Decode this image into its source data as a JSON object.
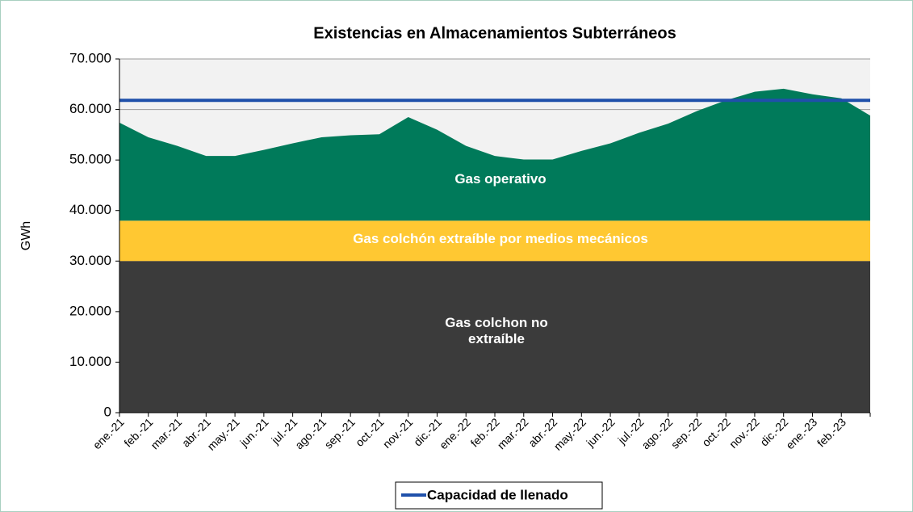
{
  "chart_data": {
    "type": "area",
    "title": "Existencias en Almacenamientos Subterráneos",
    "y_label": "GWh",
    "categories": [
      "ene.-21",
      "feb.-21",
      "mar.-21",
      "abr.-21",
      "may.-21",
      "jun.-21",
      "jul.-21",
      "ago.-21",
      "sep.-21",
      "oct.-21",
      "nov.-21",
      "dic.-21",
      "ene.-22",
      "feb.-22",
      "mar.-22",
      "abr.-22",
      "may.-22",
      "jun.-22",
      "jul.-22",
      "ago.-22",
      "sep.-22",
      "oct.-22",
      "nov.-22",
      "dic.-22",
      "ene.-23",
      "feb.-23",
      null
    ],
    "series": [
      {
        "name": "Gas colchon no extraíble",
        "color": "#3b3b3b",
        "values": [
          30000,
          30000,
          30000,
          30000,
          30000,
          30000,
          30000,
          30000,
          30000,
          30000,
          30000,
          30000,
          30000,
          30000,
          30000,
          30000,
          30000,
          30000,
          30000,
          30000,
          30000,
          30000,
          30000,
          30000,
          30000,
          30000,
          30000
        ]
      },
      {
        "name": "Gas colchón extraíble por medios mecánicos",
        "color": "#ffc832",
        "values": [
          8000,
          8000,
          8000,
          8000,
          8000,
          8000,
          8000,
          8000,
          8000,
          8000,
          8000,
          8000,
          8000,
          8000,
          8000,
          8000,
          8000,
          8000,
          8000,
          8000,
          8000,
          8000,
          8000,
          8000,
          8000,
          8000,
          8000
        ]
      },
      {
        "name": "Gas operativo",
        "color": "#007a5a",
        "values": [
          19400,
          16500,
          14800,
          12800,
          12800,
          14000,
          15300,
          16500,
          16900,
          17100,
          20500,
          18000,
          14800,
          12800,
          12100,
          12100,
          13800,
          15300,
          17400,
          19200,
          21700,
          23800,
          25500,
          26100,
          25000,
          24200,
          20800
        ]
      },
      {
        "name": "Capacidad de llenado",
        "type": "line",
        "color": "#1f50aa",
        "values": [
          61800,
          61800,
          61800,
          61800,
          61800,
          61800,
          61800,
          61800,
          61800,
          61800,
          61800,
          61800,
          61800,
          61800,
          61800,
          61800,
          61800,
          61800,
          61800,
          61800,
          61800,
          61800,
          61800,
          61800,
          61800,
          61800,
          61800
        ]
      }
    ],
    "ylim": [
      0,
      70000
    ],
    "yticks": [
      0,
      {
        "value": 10000,
        "label": "10.000"
      },
      {
        "value": 20000,
        "label": "20.000"
      },
      {
        "value": 30000,
        "label": "30.000"
      },
      {
        "value": 40000,
        "label": "40.000"
      },
      {
        "value": 50000,
        "label": "50.000"
      },
      {
        "value": 60000,
        "label": "60.000"
      },
      {
        "value": 70000,
        "label": "70.000"
      }
    ],
    "grid": true,
    "legend": "bottom"
  }
}
